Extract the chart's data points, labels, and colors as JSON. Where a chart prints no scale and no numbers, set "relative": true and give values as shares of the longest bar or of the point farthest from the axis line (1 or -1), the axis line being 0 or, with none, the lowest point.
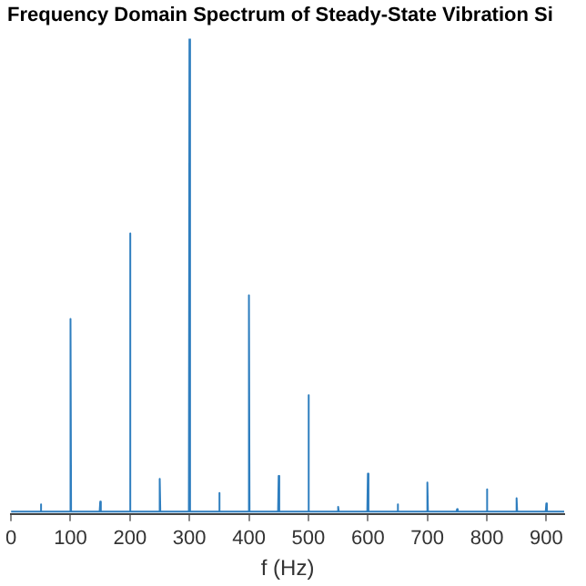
{
  "chart_data": {
    "type": "line",
    "title": "Frequency Domain Spectrum of Steady-State Vibration Si",
    "xlabel": "f (Hz)",
    "relative": true,
    "x": [
      0,
      49,
      50,
      51,
      99,
      100,
      101,
      149,
      150,
      151,
      199,
      200,
      201,
      249,
      250,
      251,
      299,
      300,
      301,
      349,
      350,
      351,
      399,
      400,
      401,
      449,
      450,
      451,
      499,
      500,
      501,
      549,
      550,
      551,
      599,
      600,
      601,
      649,
      650,
      651,
      699,
      700,
      701,
      749,
      750,
      751,
      799,
      800,
      801,
      849,
      850,
      851,
      899,
      900,
      901,
      930
    ],
    "series": [
      {
        "color": "#2e7ebf",
        "values": [
          0.005,
          0.005,
          0.02,
          0.005,
          0.005,
          0.41,
          0.005,
          0.005,
          0.026,
          0.005,
          0.005,
          0.59,
          0.005,
          0.005,
          0.074,
          0.005,
          0.005,
          1,
          0.005,
          0.005,
          0.044,
          0.005,
          0.005,
          0.46,
          0.005,
          0.005,
          0.08,
          0.005,
          0.005,
          0.25,
          0.005,
          0.005,
          0.015,
          0.005,
          0.005,
          0.085,
          0.005,
          0.005,
          0.02,
          0.005,
          0.005,
          0.066,
          0.005,
          0.005,
          0.01,
          0.005,
          0.005,
          0.052,
          0.005,
          0.005,
          0.033,
          0.005,
          0.005,
          0.022,
          0.005,
          0.005
        ]
      }
    ],
    "xlim": [
      0,
      930
    ],
    "xticks": [
      0,
      100,
      200,
      300,
      400,
      500,
      600,
      700,
      800,
      900
    ],
    "grid": false,
    "legend": false,
    "marker": "none",
    "line_style": "solid",
    "tick_labels": "x"
  }
}
